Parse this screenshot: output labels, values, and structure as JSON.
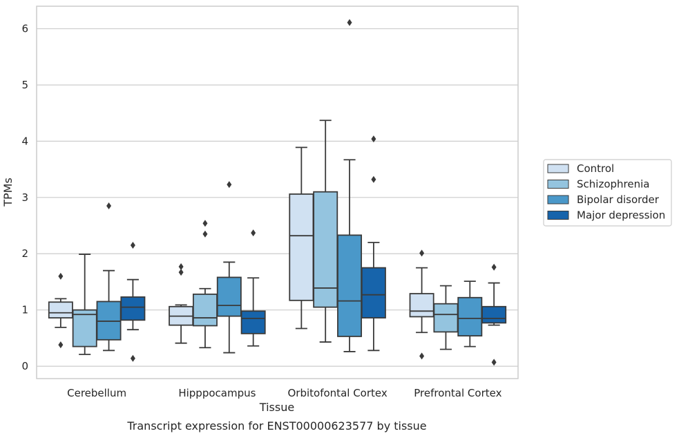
{
  "chart_data": {
    "type": "boxplot",
    "caption": "Transcript expression for ENST00000623577 by tissue",
    "xlabel": "Tissue",
    "ylabel": "TPMs",
    "ylim": [
      -0.22,
      6.4
    ],
    "yticks": [
      0,
      1,
      2,
      3,
      4,
      5,
      6
    ],
    "grid": "horizontal",
    "legend_position": "right",
    "categories": [
      "Cerebellum",
      "Hipppocampus",
      "Orbitofontal Cortex",
      "Prefrontal Cortex"
    ],
    "series": [
      {
        "name": "Control",
        "color": "#d0e1f2",
        "boxes": [
          {
            "whisker_low": 0.69,
            "q1": 0.86,
            "median": 0.95,
            "q3": 1.14,
            "whisker_high": 1.2,
            "outliers": [
              1.6,
              0.38
            ]
          },
          {
            "whisker_low": 0.41,
            "q1": 0.73,
            "median": 0.89,
            "q3": 1.06,
            "whisker_high": 1.09,
            "outliers": [
              1.77,
              1.67
            ]
          },
          {
            "whisker_low": 0.67,
            "q1": 1.17,
            "median": 2.32,
            "q3": 3.06,
            "whisker_high": 3.89,
            "outliers": []
          },
          {
            "whisker_low": 0.6,
            "q1": 0.88,
            "median": 0.98,
            "q3": 1.29,
            "whisker_high": 1.75,
            "outliers": [
              2.01,
              0.18
            ]
          }
        ]
      },
      {
        "name": "Schizophrenia",
        "color": "#94c4df",
        "boxes": [
          {
            "whisker_low": 0.21,
            "q1": 0.35,
            "median": 0.92,
            "q3": 1.0,
            "whisker_high": 1.99,
            "outliers": []
          },
          {
            "whisker_low": 0.33,
            "q1": 0.72,
            "median": 0.86,
            "q3": 1.28,
            "whisker_high": 1.38,
            "outliers": [
              2.54,
              2.35
            ]
          },
          {
            "whisker_low": 0.43,
            "q1": 1.05,
            "median": 1.39,
            "q3": 3.1,
            "whisker_high": 4.37,
            "outliers": []
          },
          {
            "whisker_low": 0.3,
            "q1": 0.61,
            "median": 0.92,
            "q3": 1.11,
            "whisker_high": 1.43,
            "outliers": []
          }
        ]
      },
      {
        "name": "Bipolar disorder",
        "color": "#4a98c9",
        "boxes": [
          {
            "whisker_low": 0.28,
            "q1": 0.47,
            "median": 0.8,
            "q3": 1.15,
            "whisker_high": 1.7,
            "outliers": [
              2.85
            ]
          },
          {
            "whisker_low": 0.24,
            "q1": 0.89,
            "median": 1.08,
            "q3": 1.58,
            "whisker_high": 1.85,
            "outliers": [
              3.23
            ]
          },
          {
            "whisker_low": 0.26,
            "q1": 0.53,
            "median": 1.16,
            "q3": 2.33,
            "whisker_high": 3.67,
            "outliers": [
              6.11
            ]
          },
          {
            "whisker_low": 0.35,
            "q1": 0.54,
            "median": 0.85,
            "q3": 1.22,
            "whisker_high": 1.51,
            "outliers": []
          }
        ]
      },
      {
        "name": "Major depression",
        "color": "#1764ab",
        "boxes": [
          {
            "whisker_low": 0.65,
            "q1": 0.82,
            "median": 1.05,
            "q3": 1.23,
            "whisker_high": 1.54,
            "outliers": [
              2.15,
              0.14
            ]
          },
          {
            "whisker_low": 0.36,
            "q1": 0.58,
            "median": 0.85,
            "q3": 0.98,
            "whisker_high": 1.57,
            "outliers": [
              2.37
            ]
          },
          {
            "whisker_low": 0.28,
            "q1": 0.86,
            "median": 1.27,
            "q3": 1.75,
            "whisker_high": 2.2,
            "outliers": [
              4.04,
              3.32
            ]
          },
          {
            "whisker_low": 0.73,
            "q1": 0.77,
            "median": 0.85,
            "q3": 1.06,
            "whisker_high": 1.48,
            "outliers": [
              1.76,
              0.07
            ]
          }
        ]
      }
    ]
  }
}
